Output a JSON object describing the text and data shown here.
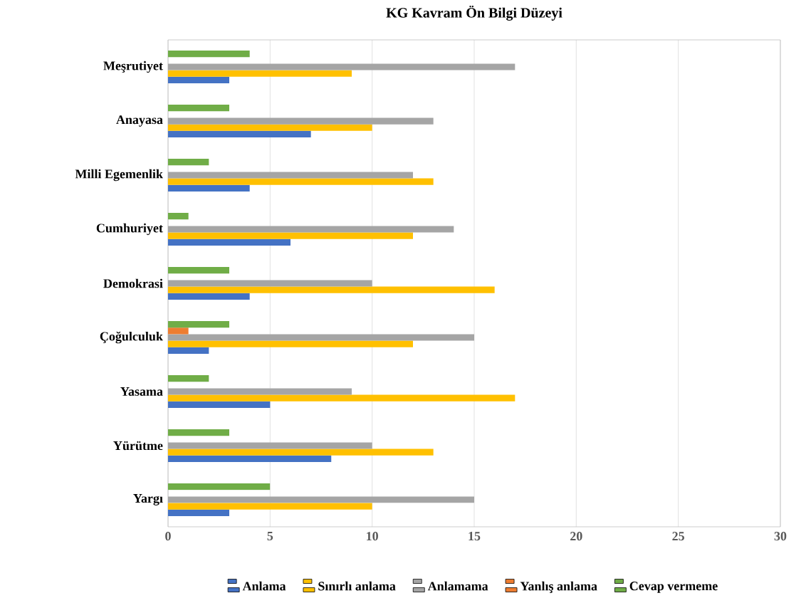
{
  "chart_data": {
    "type": "bar",
    "orientation": "horizontal",
    "title": "KG Kavram Ön Bilgi Düzeyi",
    "categories": [
      "Meşrutiyet",
      "Anayasa",
      "Milli Egemenlik",
      "Cumhuriyet",
      "Demokrasi",
      "Çoğulculuk",
      "Yasama",
      "Yürütme",
      "Yargı"
    ],
    "series": [
      {
        "name": "Anlama",
        "color": "#4472c4",
        "values": [
          3,
          7,
          4,
          6,
          4,
          2,
          5,
          8,
          3
        ]
      },
      {
        "name": "Sınırlı anlama",
        "color": "#ffc000",
        "values": [
          9,
          10,
          13,
          12,
          16,
          12,
          17,
          13,
          10
        ]
      },
      {
        "name": "Anlamama",
        "color": "#a5a5a5",
        "values": [
          17,
          13,
          12,
          14,
          10,
          15,
          9,
          10,
          15
        ]
      },
      {
        "name": "Yanlış anlama",
        "color": "#ed7d31",
        "values": [
          0,
          0,
          0,
          0,
          0,
          1,
          0,
          0,
          0
        ]
      },
      {
        "name": "Cevap vermeme",
        "color": "#70ad47",
        "values": [
          4,
          3,
          2,
          1,
          3,
          3,
          2,
          3,
          5
        ]
      }
    ],
    "xlim": [
      0,
      30
    ],
    "xticks": [
      0,
      5,
      10,
      15,
      20,
      25,
      30
    ],
    "grid": "x",
    "legend": "bottom"
  }
}
